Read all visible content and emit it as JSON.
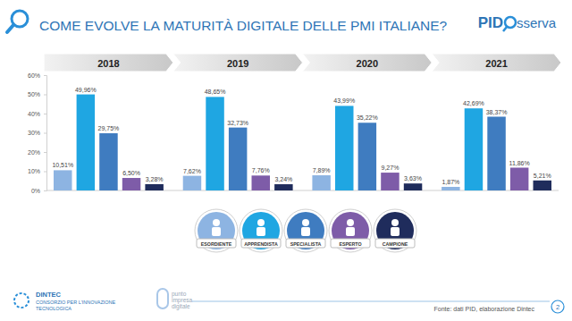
{
  "chart_data": {
    "type": "bar",
    "title": "COME EVOLVE LA MATURITÀ DIGITALE DELLE PMI ITALIANE?",
    "categories": [
      "2018",
      "2019",
      "2020",
      "2021"
    ],
    "series": [
      {
        "name": "ESORDIENTE",
        "color": "#8db4e2",
        "values": [
          10.51,
          7.62,
          7.89,
          1.87
        ],
        "value_labels": [
          "10,51%",
          "7,62%",
          "7,89%",
          "1,87%"
        ]
      },
      {
        "name": "APPRENDISTA",
        "color": "#1fa6e2",
        "values": [
          49.96,
          48.65,
          43.99,
          42.69
        ],
        "value_labels": [
          "49,96%",
          "48,65%",
          "43,99%",
          "42,69%"
        ]
      },
      {
        "name": "SPECIALISTA",
        "color": "#3f7cc0",
        "values": [
          29.75,
          32.73,
          35.22,
          38.37
        ],
        "value_labels": [
          "29,75%",
          "32,73%",
          "35,22%",
          "38,37%"
        ]
      },
      {
        "name": "ESPERTO",
        "color": "#7e5ca8",
        "values": [
          6.5,
          7.76,
          9.27,
          11.86
        ],
        "value_labels": [
          "6,50%",
          "7,76%",
          "9,27%",
          "11,86%"
        ]
      },
      {
        "name": "CAMPIONE",
        "color": "#1f2c5c",
        "values": [
          3.28,
          3.24,
          3.63,
          5.21
        ],
        "value_labels": [
          "3,28%",
          "3,24%",
          "3,63%",
          "5,21%"
        ]
      }
    ],
    "ylim": [
      0,
      60
    ],
    "yticks": [
      {
        "value": 0,
        "label": "0%"
      },
      {
        "value": 10,
        "label": "10%"
      },
      {
        "value": 20,
        "label": "20%"
      },
      {
        "value": 30,
        "label": "30%"
      },
      {
        "value": 40,
        "label": "40%"
      },
      {
        "value": 50,
        "label": "50%"
      },
      {
        "value": 60,
        "label": "60%"
      }
    ],
    "grid": false,
    "data_labels": true,
    "legend": "bottom",
    "annotations": [
      "PID",
      "sserva",
      "DINTEC",
      "CONSORZIO PER L'INNOVAZIONE",
      "TECNOLOGICA",
      "punto",
      "impresa",
      "digitale",
      "Fonte: dati PID, elaborazione Dintec",
      "2"
    ]
  }
}
